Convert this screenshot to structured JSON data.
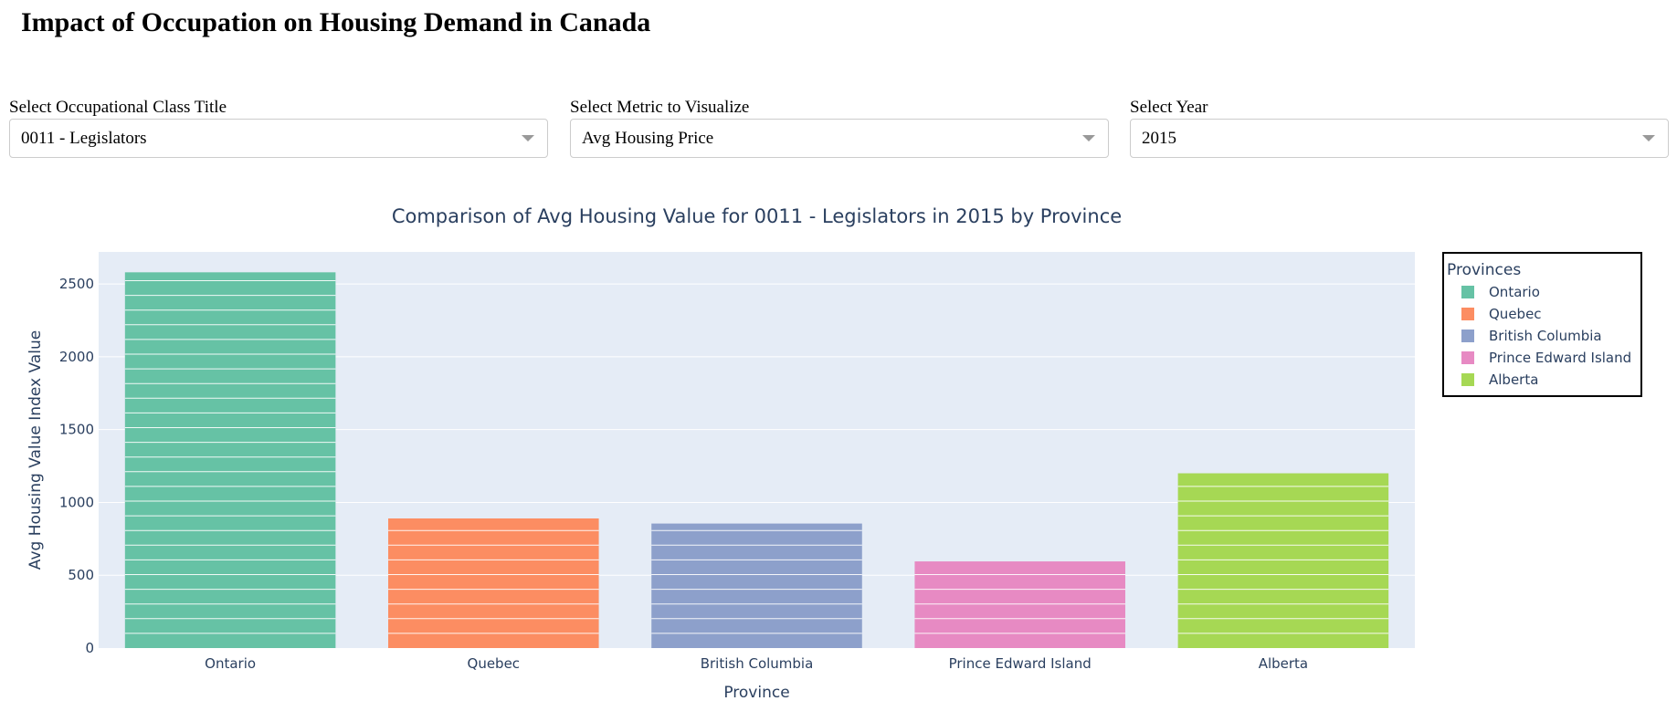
{
  "page": {
    "title": "Impact of Occupation on Housing Demand in Canada"
  },
  "filters": {
    "occupation": {
      "label": "Select Occupational Class Title",
      "value": "0011 - Legislators"
    },
    "metric": {
      "label": "Select Metric to Visualize",
      "value": "Avg Housing Price"
    },
    "year": {
      "label": "Select Year",
      "value": "2015"
    }
  },
  "chart_data": {
    "type": "bar",
    "title": "Comparison of Avg Housing Value for 0011 - Legislators in 2015 by Province",
    "xlabel": "Province",
    "ylabel": "Avg Housing Value Index Value",
    "categories": [
      "Ontario",
      "Quebec",
      "British Columbia",
      "Prince Edward Island",
      "Alberta"
    ],
    "values": [
      2580,
      890,
      855,
      595,
      1200
    ],
    "colors": [
      "#66c2a5",
      "#fc8d62",
      "#8da0cb",
      "#e78ac3",
      "#a6d854"
    ],
    "yticks": [
      0,
      500,
      1000,
      1500,
      2000,
      2500
    ],
    "ylim": [
      0,
      2720
    ],
    "grid": true,
    "stacked_segment_lines": true,
    "legend": {
      "title": "Provinces",
      "placement": "right",
      "entries": [
        "Ontario",
        "Quebec",
        "British Columbia",
        "Prince Edward Island",
        "Alberta"
      ]
    }
  },
  "colors": {
    "plot_bg": "#e5ecf6",
    "text": "#2a3f5f",
    "grid": "#ffffff"
  }
}
